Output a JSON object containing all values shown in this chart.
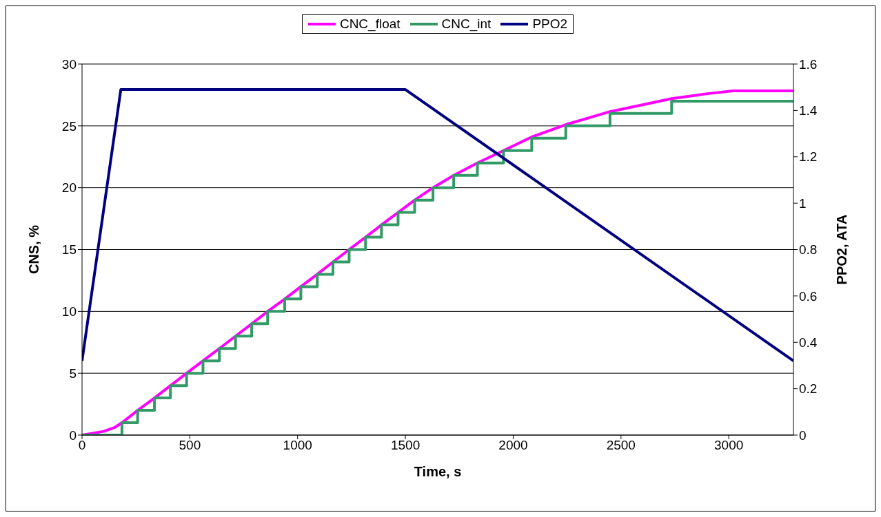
{
  "chart_data": {
    "type": "line",
    "xlabel": "Time, s",
    "ylabel": "CNS, %",
    "y2label": "PPO2, ATA",
    "xlim": [
      0,
      3300
    ],
    "xticks": [
      0,
      500,
      1000,
      1500,
      2000,
      2500,
      3000
    ],
    "ylim": [
      0,
      30
    ],
    "yticks": [
      0,
      5,
      10,
      15,
      20,
      25,
      30
    ],
    "y2lim": [
      0,
      1.6
    ],
    "y2ticks": [
      0,
      0.2,
      0.4,
      0.6,
      0.8,
      1,
      1.2,
      1.4,
      1.6
    ],
    "grid": "y",
    "legend": "top",
    "marker": "none",
    "line_style": "solid",
    "series": [
      {
        "name": "CNC_float",
        "color": "#ff00ff",
        "x": [
          0,
          100,
          150,
          185,
          258,
          336,
          410,
          485,
          561,
          637,
          712,
          787,
          861,
          940,
          1015,
          1091,
          1164,
          1239,
          1315,
          1389,
          1466,
          1543,
          1628,
          1724,
          1834,
          1955,
          2086,
          2244,
          2449,
          2735,
          2900,
          3020,
          3300
        ],
        "values": [
          0,
          0.3,
          0.6,
          1,
          2,
          3,
          4,
          5,
          6,
          7,
          8,
          9,
          10,
          11,
          12,
          13,
          14,
          15,
          16,
          17,
          18,
          19,
          20,
          21,
          22,
          23,
          24.1,
          25.1,
          26.15,
          27.2,
          27.6,
          27.83,
          27.83
        ]
      },
      {
        "name": "CNC_int",
        "color": "#339966",
        "type": "step",
        "x": [
          0,
          185,
          258,
          336,
          410,
          485,
          561,
          637,
          712,
          787,
          861,
          940,
          1015,
          1091,
          1164,
          1239,
          1315,
          1389,
          1466,
          1543,
          1628,
          1724,
          1834,
          1955,
          2086,
          2244,
          2449,
          2735,
          3300
        ],
        "values": [
          0,
          1,
          2,
          3,
          4,
          5,
          6,
          7,
          8,
          9,
          10,
          11,
          12,
          13,
          14,
          15,
          16,
          17,
          18,
          19,
          20,
          21,
          22,
          23,
          24,
          25,
          26,
          27,
          27
        ]
      },
      {
        "name": "PPO2",
        "color": "#000080",
        "axis": "y2",
        "x": [
          0,
          180,
          1500,
          3300
        ],
        "values": [
          0.32,
          1.49,
          1.49,
          0.32
        ]
      }
    ]
  }
}
